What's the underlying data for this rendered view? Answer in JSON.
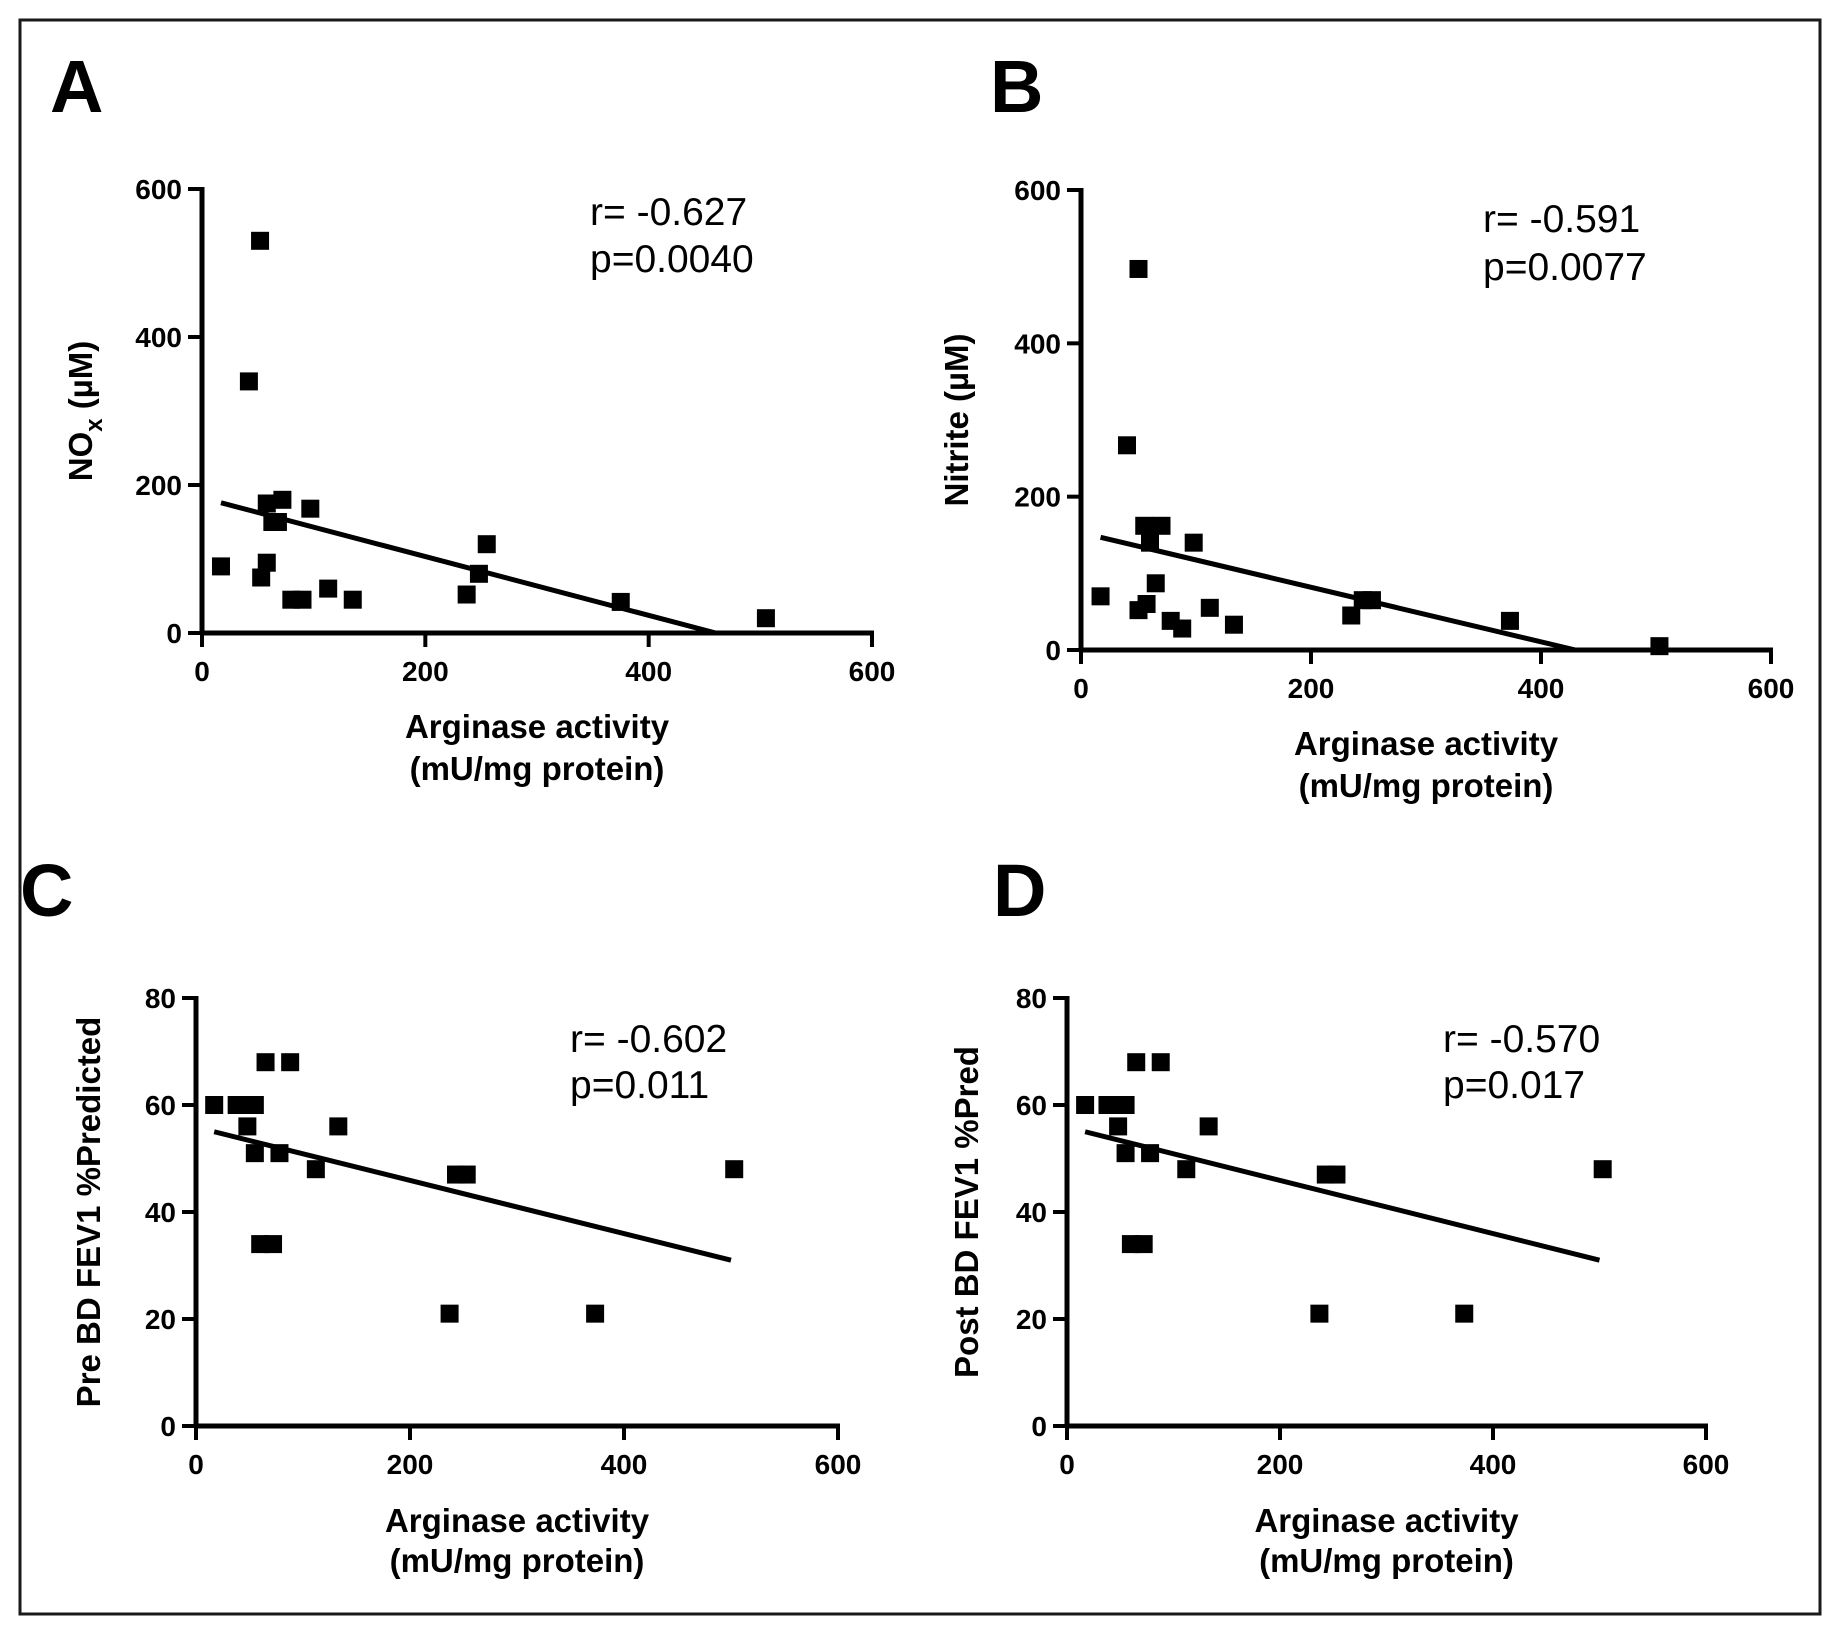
{
  "chart_data": [
    {
      "panel": "A",
      "type": "scatter",
      "ylabel": "NO",
      "ylabel_sub": "x",
      "ylabel_unit": " (µM)",
      "xlabel": [
        "Arginase activity",
        "(mU/mg protein)"
      ],
      "xlim": [
        0,
        600
      ],
      "ylim": [
        0,
        600
      ],
      "xticks": [
        0,
        200,
        400,
        600
      ],
      "yticks": [
        0,
        200,
        400,
        600
      ],
      "stats": [
        "r= -0.627",
        "p=0.0040"
      ],
      "fit": {
        "x": [
          17,
          460
        ],
        "y": [
          176,
          0
        ]
      },
      "points": [
        [
          52,
          530
        ],
        [
          42,
          340
        ],
        [
          17,
          90
        ],
        [
          58,
          175
        ],
        [
          72,
          180
        ],
        [
          63,
          150
        ],
        [
          68,
          150
        ],
        [
          97,
          168
        ],
        [
          58,
          95
        ],
        [
          53,
          75
        ],
        [
          80,
          45
        ],
        [
          90,
          45
        ],
        [
          113,
          60
        ],
        [
          135,
          45
        ],
        [
          237,
          52
        ],
        [
          248,
          80
        ],
        [
          255,
          120
        ],
        [
          375,
          42
        ],
        [
          505,
          20
        ]
      ]
    },
    {
      "panel": "B",
      "type": "scatter",
      "ylabel": "Nitrite (µM)",
      "xlabel": [
        "Arginase activity",
        "(mU/mg protein)"
      ],
      "xlim": [
        0,
        600
      ],
      "ylim": [
        0,
        600
      ],
      "xticks": [
        0,
        200,
        400,
        600
      ],
      "yticks": [
        0,
        200,
        400,
        600
      ],
      "stats": [
        "r= -0.591",
        "p=0.0077"
      ],
      "fit": {
        "x": [
          17,
          430
        ],
        "y": [
          147,
          0
        ]
      },
      "points": [
        [
          50,
          497
        ],
        [
          40,
          267
        ],
        [
          17,
          70
        ],
        [
          55,
          162
        ],
        [
          70,
          162
        ],
        [
          60,
          140
        ],
        [
          98,
          140
        ],
        [
          65,
          87
        ],
        [
          57,
          60
        ],
        [
          50,
          52
        ],
        [
          78,
          38
        ],
        [
          88,
          28
        ],
        [
          112,
          55
        ],
        [
          133,
          33
        ],
        [
          235,
          45
        ],
        [
          245,
          65
        ],
        [
          253,
          65
        ],
        [
          373,
          38
        ],
        [
          503,
          5
        ]
      ]
    },
    {
      "panel": "C",
      "type": "scatter",
      "ylabel": "Pre BD FEV1 %Predicted",
      "xlabel": [
        "Arginase activity",
        "(mU/mg protein)"
      ],
      "xlim": [
        0,
        600
      ],
      "ylim": [
        0,
        80
      ],
      "xticks": [
        0,
        200,
        400,
        600
      ],
      "yticks": [
        0,
        20,
        40,
        60,
        80
      ],
      "stats": [
        "r= -0.602",
        "p=0.011"
      ],
      "fit": {
        "x": [
          17,
          500
        ],
        "y": [
          55,
          31
        ]
      },
      "points": [
        [
          17,
          60
        ],
        [
          38,
          60
        ],
        [
          45,
          60
        ],
        [
          55,
          60
        ],
        [
          48,
          56
        ],
        [
          55,
          51
        ],
        [
          78,
          51
        ],
        [
          65,
          68
        ],
        [
          88,
          68
        ],
        [
          133,
          56
        ],
        [
          112,
          48
        ],
        [
          60,
          34
        ],
        [
          72,
          34
        ],
        [
          237,
          21
        ],
        [
          243,
          47
        ],
        [
          253,
          47
        ],
        [
          373,
          21
        ],
        [
          503,
          48
        ]
      ]
    },
    {
      "panel": "D",
      "type": "scatter",
      "ylabel": "Post BD FEV1 %Pred",
      "xlabel": [
        "Arginase activity",
        "(mU/mg protein)"
      ],
      "xlim": [
        0,
        600
      ],
      "ylim": [
        0,
        80
      ],
      "xticks": [
        0,
        200,
        400,
        600
      ],
      "yticks": [
        0,
        20,
        40,
        60,
        80
      ],
      "stats": [
        "r= -0.570",
        "p=0.017"
      ],
      "fit": {
        "x": [
          17,
          500
        ],
        "y": [
          55,
          31
        ]
      },
      "points": [
        [
          17,
          60
        ],
        [
          38,
          60
        ],
        [
          45,
          60
        ],
        [
          55,
          60
        ],
        [
          48,
          56
        ],
        [
          55,
          51
        ],
        [
          78,
          51
        ],
        [
          65,
          68
        ],
        [
          88,
          68
        ],
        [
          133,
          56
        ],
        [
          112,
          48
        ],
        [
          60,
          34
        ],
        [
          72,
          34
        ],
        [
          237,
          21
        ],
        [
          243,
          47
        ],
        [
          253,
          47
        ],
        [
          373,
          21
        ],
        [
          503,
          48
        ]
      ]
    }
  ]
}
